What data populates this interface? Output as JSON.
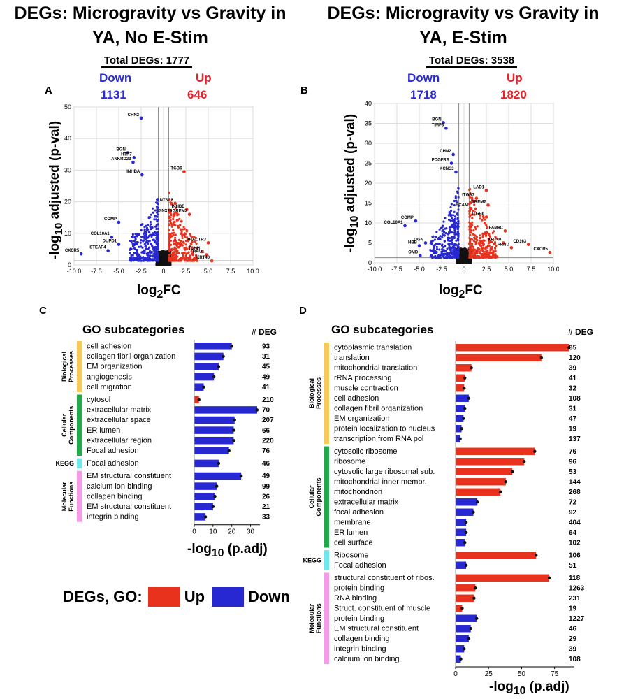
{
  "panelA": {
    "letter": "A",
    "title_line1": "DEGs: Microgravity vs Gravity in",
    "title_line2": "YA, No E-Stim",
    "total": "Total DEGs: 1777",
    "down_label": "Down",
    "up_label": "Up",
    "down_count": "1131",
    "up_count": "646"
  },
  "panelB": {
    "letter": "B",
    "title_line1": "DEGs: Microgravity vs Gravity in",
    "title_line2": "YA, E-Stim",
    "total": "Total DEGs: 3538",
    "down_label": "Down",
    "up_label": "Up",
    "down_count": "1718",
    "up_count": "1820"
  },
  "panelC": {
    "letter": "C",
    "go_header": "GO subcategories",
    "deg_header": "# DEG",
    "xlabel": "-log10 (p.adj)"
  },
  "panelD": {
    "letter": "D",
    "go_header": "GO subcategories",
    "deg_header": "# DEG",
    "xlabel": "-log10 (p.adj)"
  },
  "legend": {
    "label": "DEGs, GO:",
    "up": "Up",
    "down": "Down"
  },
  "colors": {
    "up": "#e8321e",
    "down": "#2828d2",
    "bio": "#f7c95a",
    "cell": "#23a84a",
    "kegg": "#6ee8ec",
    "mol": "#f59ae8",
    "ns": "#111111"
  },
  "chart_data": [
    {
      "type": "scatter",
      "id": "volcanoA",
      "xlabel": "log2FC",
      "ylabel": "-log10 adjusted (p-val)",
      "xlim": [
        -10,
        10
      ],
      "ylim": [
        0,
        50
      ],
      "xticks": [
        -10,
        -7.5,
        -5,
        -2.5,
        0,
        2.5,
        5,
        7.5,
        10
      ],
      "yticks": [
        0,
        10,
        20,
        30,
        40,
        50
      ],
      "xtick_labels": [
        "-10.0",
        "-7.5",
        "-5.0",
        "-2.5",
        "0",
        "2.5",
        "5.0",
        "7.5",
        "10.0"
      ],
      "labeled_points": [
        {
          "label": "CHN2",
          "x": -2.5,
          "y": 46.5,
          "dir": "down"
        },
        {
          "label": "BGN",
          "x": -4.0,
          "y": 35.5,
          "dir": "down"
        },
        {
          "label": "HTR7",
          "x": -3.3,
          "y": 34,
          "dir": "down"
        },
        {
          "label": "ANKRD23",
          "x": -3.4,
          "y": 32.5,
          "dir": "down"
        },
        {
          "label": "INHBA",
          "x": -2.4,
          "y": 28.5,
          "dir": "down"
        },
        {
          "label": "ITGB6",
          "x": 2.3,
          "y": 29.5,
          "dir": "up"
        },
        {
          "label": "NT5C2",
          "x": 1.3,
          "y": 19.5,
          "dir": "up"
        },
        {
          "label": "INHBE",
          "x": 2.6,
          "y": 17.5,
          "dir": "up"
        },
        {
          "label": "SNX29",
          "x": 1.2,
          "y": 16,
          "dir": "up"
        },
        {
          "label": "GREM2",
          "x": 2.9,
          "y": 16,
          "dir": "up"
        },
        {
          "label": "COMP",
          "x": -5.0,
          "y": 13.5,
          "dir": "down"
        },
        {
          "label": "COL10A1",
          "x": -5.8,
          "y": 8.8,
          "dir": "down"
        },
        {
          "label": "DUPD1",
          "x": -5.0,
          "y": 6.5,
          "dir": "down"
        },
        {
          "label": "PHACTR3",
          "x": 5.0,
          "y": 7,
          "dir": "up"
        },
        {
          "label": "CXCR5",
          "x": -9.2,
          "y": 3.5,
          "dir": "down"
        },
        {
          "label": "STEAP4",
          "x": -6.2,
          "y": 4.5,
          "dir": "down"
        },
        {
          "label": "TCHH",
          "x": 4.3,
          "y": 4.2,
          "dir": "up"
        },
        {
          "label": "HAO1",
          "x": 4.8,
          "y": 3.2,
          "dir": "up"
        },
        {
          "label": "KRT40",
          "x": 5.4,
          "y": 1.3,
          "dir": "up"
        }
      ]
    },
    {
      "type": "scatter",
      "id": "volcanoB",
      "xlabel": "log2FC",
      "ylabel": "-log10 adjusted (p-val)",
      "xlim": [
        -10,
        10
      ],
      "ylim": [
        0,
        40
      ],
      "xticks": [
        -10,
        -7.5,
        -5,
        -2.5,
        0,
        2.5,
        5,
        7.5,
        10
      ],
      "yticks": [
        0,
        5,
        10,
        15,
        20,
        25,
        30,
        35,
        40
      ],
      "xtick_labels": [
        "-10.0",
        "-7.5",
        "-5.0",
        "-2.5",
        "0",
        "2.5",
        "5.0",
        "7.5",
        "10.0"
      ],
      "labeled_points": [
        {
          "label": "BGN",
          "x": -2.3,
          "y": 35.2,
          "dir": "down"
        },
        {
          "label": "TIMP3",
          "x": -2.0,
          "y": 33.8,
          "dir": "down"
        },
        {
          "label": "CHN2",
          "x": -1.2,
          "y": 27.2,
          "dir": "down"
        },
        {
          "label": "PDGFRB",
          "x": -1.4,
          "y": 25,
          "dir": "down"
        },
        {
          "label": "KCNS3",
          "x": -0.9,
          "y": 22.8,
          "dir": "down"
        },
        {
          "label": "LAD1",
          "x": 2.5,
          "y": 18.2,
          "dir": "up"
        },
        {
          "label": "ITGA7",
          "x": 1.4,
          "y": 16.2,
          "dir": "up"
        },
        {
          "label": "GREM2",
          "x": 2.7,
          "y": 14.5,
          "dir": "up"
        },
        {
          "label": "BCAM",
          "x": 0.7,
          "y": 13.7,
          "dir": "up"
        },
        {
          "label": "ITGB6",
          "x": 2.5,
          "y": 11.5,
          "dir": "up"
        },
        {
          "label": "COMP",
          "x": -5.4,
          "y": 10.5,
          "dir": "down"
        },
        {
          "label": "COL10A1",
          "x": -6.6,
          "y": 9.3,
          "dir": "down"
        },
        {
          "label": "FAM9C",
          "x": 4.6,
          "y": 8,
          "dir": "up"
        },
        {
          "label": "OGN",
          "x": -4.3,
          "y": 5,
          "dir": "down"
        },
        {
          "label": "HBB",
          "x": -5.0,
          "y": 4.3,
          "dir": "down"
        },
        {
          "label": "KRT40",
          "x": 4.4,
          "y": 5,
          "dir": "up"
        },
        {
          "label": "CD163",
          "x": 7.2,
          "y": 4.6,
          "dir": "up"
        },
        {
          "label": "PRND",
          "x": 5.3,
          "y": 3.8,
          "dir": "up"
        },
        {
          "label": "OMD",
          "x": -4.9,
          "y": 1.8,
          "dir": "down"
        },
        {
          "label": "CXCR5",
          "x": 9.6,
          "y": 2.6,
          "dir": "up"
        }
      ]
    },
    {
      "type": "bar",
      "id": "goC",
      "orientation": "horizontal",
      "xlabel": "-log10 (p.adj)",
      "xlim": [
        0,
        35
      ],
      "xticks": [
        0,
        10,
        20,
        30
      ],
      "groups": [
        {
          "name": "Biological Processes",
          "color_key": "bio",
          "items": [
            {
              "label": "cell adhesion",
              "value": 20,
              "deg": "93",
              "dir": "down"
            },
            {
              "label": "collagen fibril organization",
              "value": 15.5,
              "deg": "31",
              "dir": "down"
            },
            {
              "label": "EM organization",
              "value": 13,
              "deg": "45",
              "dir": "down"
            },
            {
              "label": "angiogenesis",
              "value": 10.5,
              "deg": "49",
              "dir": "down"
            },
            {
              "label": "cell migration",
              "value": 5,
              "deg": "41",
              "dir": "down"
            }
          ]
        },
        {
          "name": "Cellular Components",
          "color_key": "cell",
          "items": [
            {
              "label": "cytosol",
              "value": 2.5,
              "deg": "210",
              "dir": "up"
            },
            {
              "label": "extracellular matrix",
              "value": 33.5,
              "deg": "70",
              "dir": "down"
            },
            {
              "label": "extracellular space",
              "value": 21.5,
              "deg": "207",
              "dir": "down"
            },
            {
              "label": "ER lumen",
              "value": 21,
              "deg": "66",
              "dir": "down"
            },
            {
              "label": "extracellular region",
              "value": 21,
              "deg": "220",
              "dir": "down"
            },
            {
              "label": "Focal adhesion",
              "value": 18.5,
              "deg": "76",
              "dir": "down"
            }
          ]
        },
        {
          "name": "KEGG",
          "color_key": "kegg",
          "items": [
            {
              "label": "Focal adhesion",
              "value": 13,
              "deg": "46",
              "dir": "down"
            }
          ]
        },
        {
          "name": "Molecular Functions",
          "color_key": "mol",
          "items": [
            {
              "label": "EM structural constituent",
              "value": 25,
              "deg": "49",
              "dir": "down"
            },
            {
              "label": "calcium ion binding",
              "value": 12,
              "deg": "99",
              "dir": "down"
            },
            {
              "label": "collagen binding",
              "value": 11,
              "deg": "26",
              "dir": "down"
            },
            {
              "label": "EM structural constituent",
              "value": 10,
              "deg": "21",
              "dir": "down"
            },
            {
              "label": "integrin binding",
              "value": 6,
              "deg": "33",
              "dir": "down"
            }
          ]
        }
      ]
    },
    {
      "type": "bar",
      "id": "goD",
      "orientation": "horizontal",
      "xlabel": "-log10 (p.adj)",
      "xlim": [
        0,
        90
      ],
      "xticks": [
        0,
        25,
        50,
        75
      ],
      "groups": [
        {
          "name": "Biological Processes",
          "color_key": "bio",
          "items": [
            {
              "label": "cytoplasmic translation",
              "value": 86,
              "deg": "85",
              "dir": "up"
            },
            {
              "label": "translation",
              "value": 65,
              "deg": "120",
              "dir": "up"
            },
            {
              "label": "mitochondrial translation",
              "value": 12,
              "deg": "39",
              "dir": "up"
            },
            {
              "label": "rRNA processing",
              "value": 7,
              "deg": "41",
              "dir": "up"
            },
            {
              "label": "muscle contraction",
              "value": 6.5,
              "deg": "32",
              "dir": "up"
            },
            {
              "label": "cell adhesion",
              "value": 10,
              "deg": "108",
              "dir": "down"
            },
            {
              "label": "collagen fibril organization",
              "value": 7,
              "deg": "31",
              "dir": "down"
            },
            {
              "label": "EM organization",
              "value": 6,
              "deg": "47",
              "dir": "down"
            },
            {
              "label": "protein localization to nucleus",
              "value": 4.5,
              "deg": "19",
              "dir": "down"
            },
            {
              "label": "transcription from RNA pol",
              "value": 3.5,
              "deg": "137",
              "dir": "down"
            }
          ]
        },
        {
          "name": "Cellular Components",
          "color_key": "cell",
          "items": [
            {
              "label": "cytosolic ribosome",
              "value": 60,
              "deg": "76",
              "dir": "up"
            },
            {
              "label": "ribosome",
              "value": 52,
              "deg": "96",
              "dir": "up"
            },
            {
              "label": "cytosolic large ribosomal sub.",
              "value": 43,
              "deg": "53",
              "dir": "up"
            },
            {
              "label": "mitochondrial inner membr.",
              "value": 38,
              "deg": "144",
              "dir": "up"
            },
            {
              "label": "mitochondrion",
              "value": 34,
              "deg": "268",
              "dir": "up"
            },
            {
              "label": "extracellular matrix",
              "value": 16.5,
              "deg": "72",
              "dir": "down"
            },
            {
              "label": "focal adhesion",
              "value": 13.5,
              "deg": "92",
              "dir": "down"
            },
            {
              "label": "membrane",
              "value": 8,
              "deg": "404",
              "dir": "down"
            },
            {
              "label": "ER lumen",
              "value": 8,
              "deg": "64",
              "dir": "down"
            },
            {
              "label": "cell surface",
              "value": 7,
              "deg": "102",
              "dir": "down"
            }
          ]
        },
        {
          "name": "KEGG",
          "color_key": "kegg",
          "items": [
            {
              "label": "Ribosome",
              "value": 61,
              "deg": "106",
              "dir": "up"
            },
            {
              "label": "Focal adhesion",
              "value": 8,
              "deg": "51",
              "dir": "down"
            }
          ]
        },
        {
          "name": "Molecular Functions",
          "color_key": "mol",
          "items": [
            {
              "label": "structural constituent of ribos.",
              "value": 71,
              "deg": "118",
              "dir": "up"
            },
            {
              "label": "protein binding",
              "value": 15,
              "deg": "1263",
              "dir": "up"
            },
            {
              "label": "RNA binding",
              "value": 14,
              "deg": "231",
              "dir": "up"
            },
            {
              "label": "Struct. constituent of muscle",
              "value": 5,
              "deg": "19",
              "dir": "up"
            },
            {
              "label": "protein binding",
              "value": 16,
              "deg": "1227",
              "dir": "down"
            },
            {
              "label": "EM structural constituent",
              "value": 11.5,
              "deg": "46",
              "dir": "down"
            },
            {
              "label": "collagen binding",
              "value": 10,
              "deg": "29",
              "dir": "down"
            },
            {
              "label": "integrin binding",
              "value": 6.5,
              "deg": "39",
              "dir": "down"
            },
            {
              "label": "calcium ion binding",
              "value": 4,
              "deg": "108",
              "dir": "down"
            }
          ]
        }
      ]
    }
  ]
}
